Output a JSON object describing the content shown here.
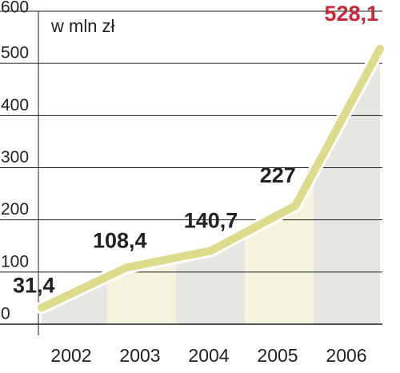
{
  "chart_data": {
    "type": "line",
    "subtitle": "w mln zł",
    "categories": [
      "2002",
      "2003",
      "2004",
      "2005",
      "2006"
    ],
    "series": [
      {
        "values": [
          31.4,
          108.4,
          140.7,
          227,
          528.1
        ],
        "value_labels": [
          "31,4",
          "108,4",
          "140,7",
          "227",
          "528,1"
        ],
        "color": "#dcdc8c"
      }
    ],
    "highlight_color": "#c8283c",
    "ylim": [
      0,
      600
    ],
    "yticks": [
      0,
      100,
      200,
      300,
      400,
      500,
      600
    ],
    "grid": true
  }
}
